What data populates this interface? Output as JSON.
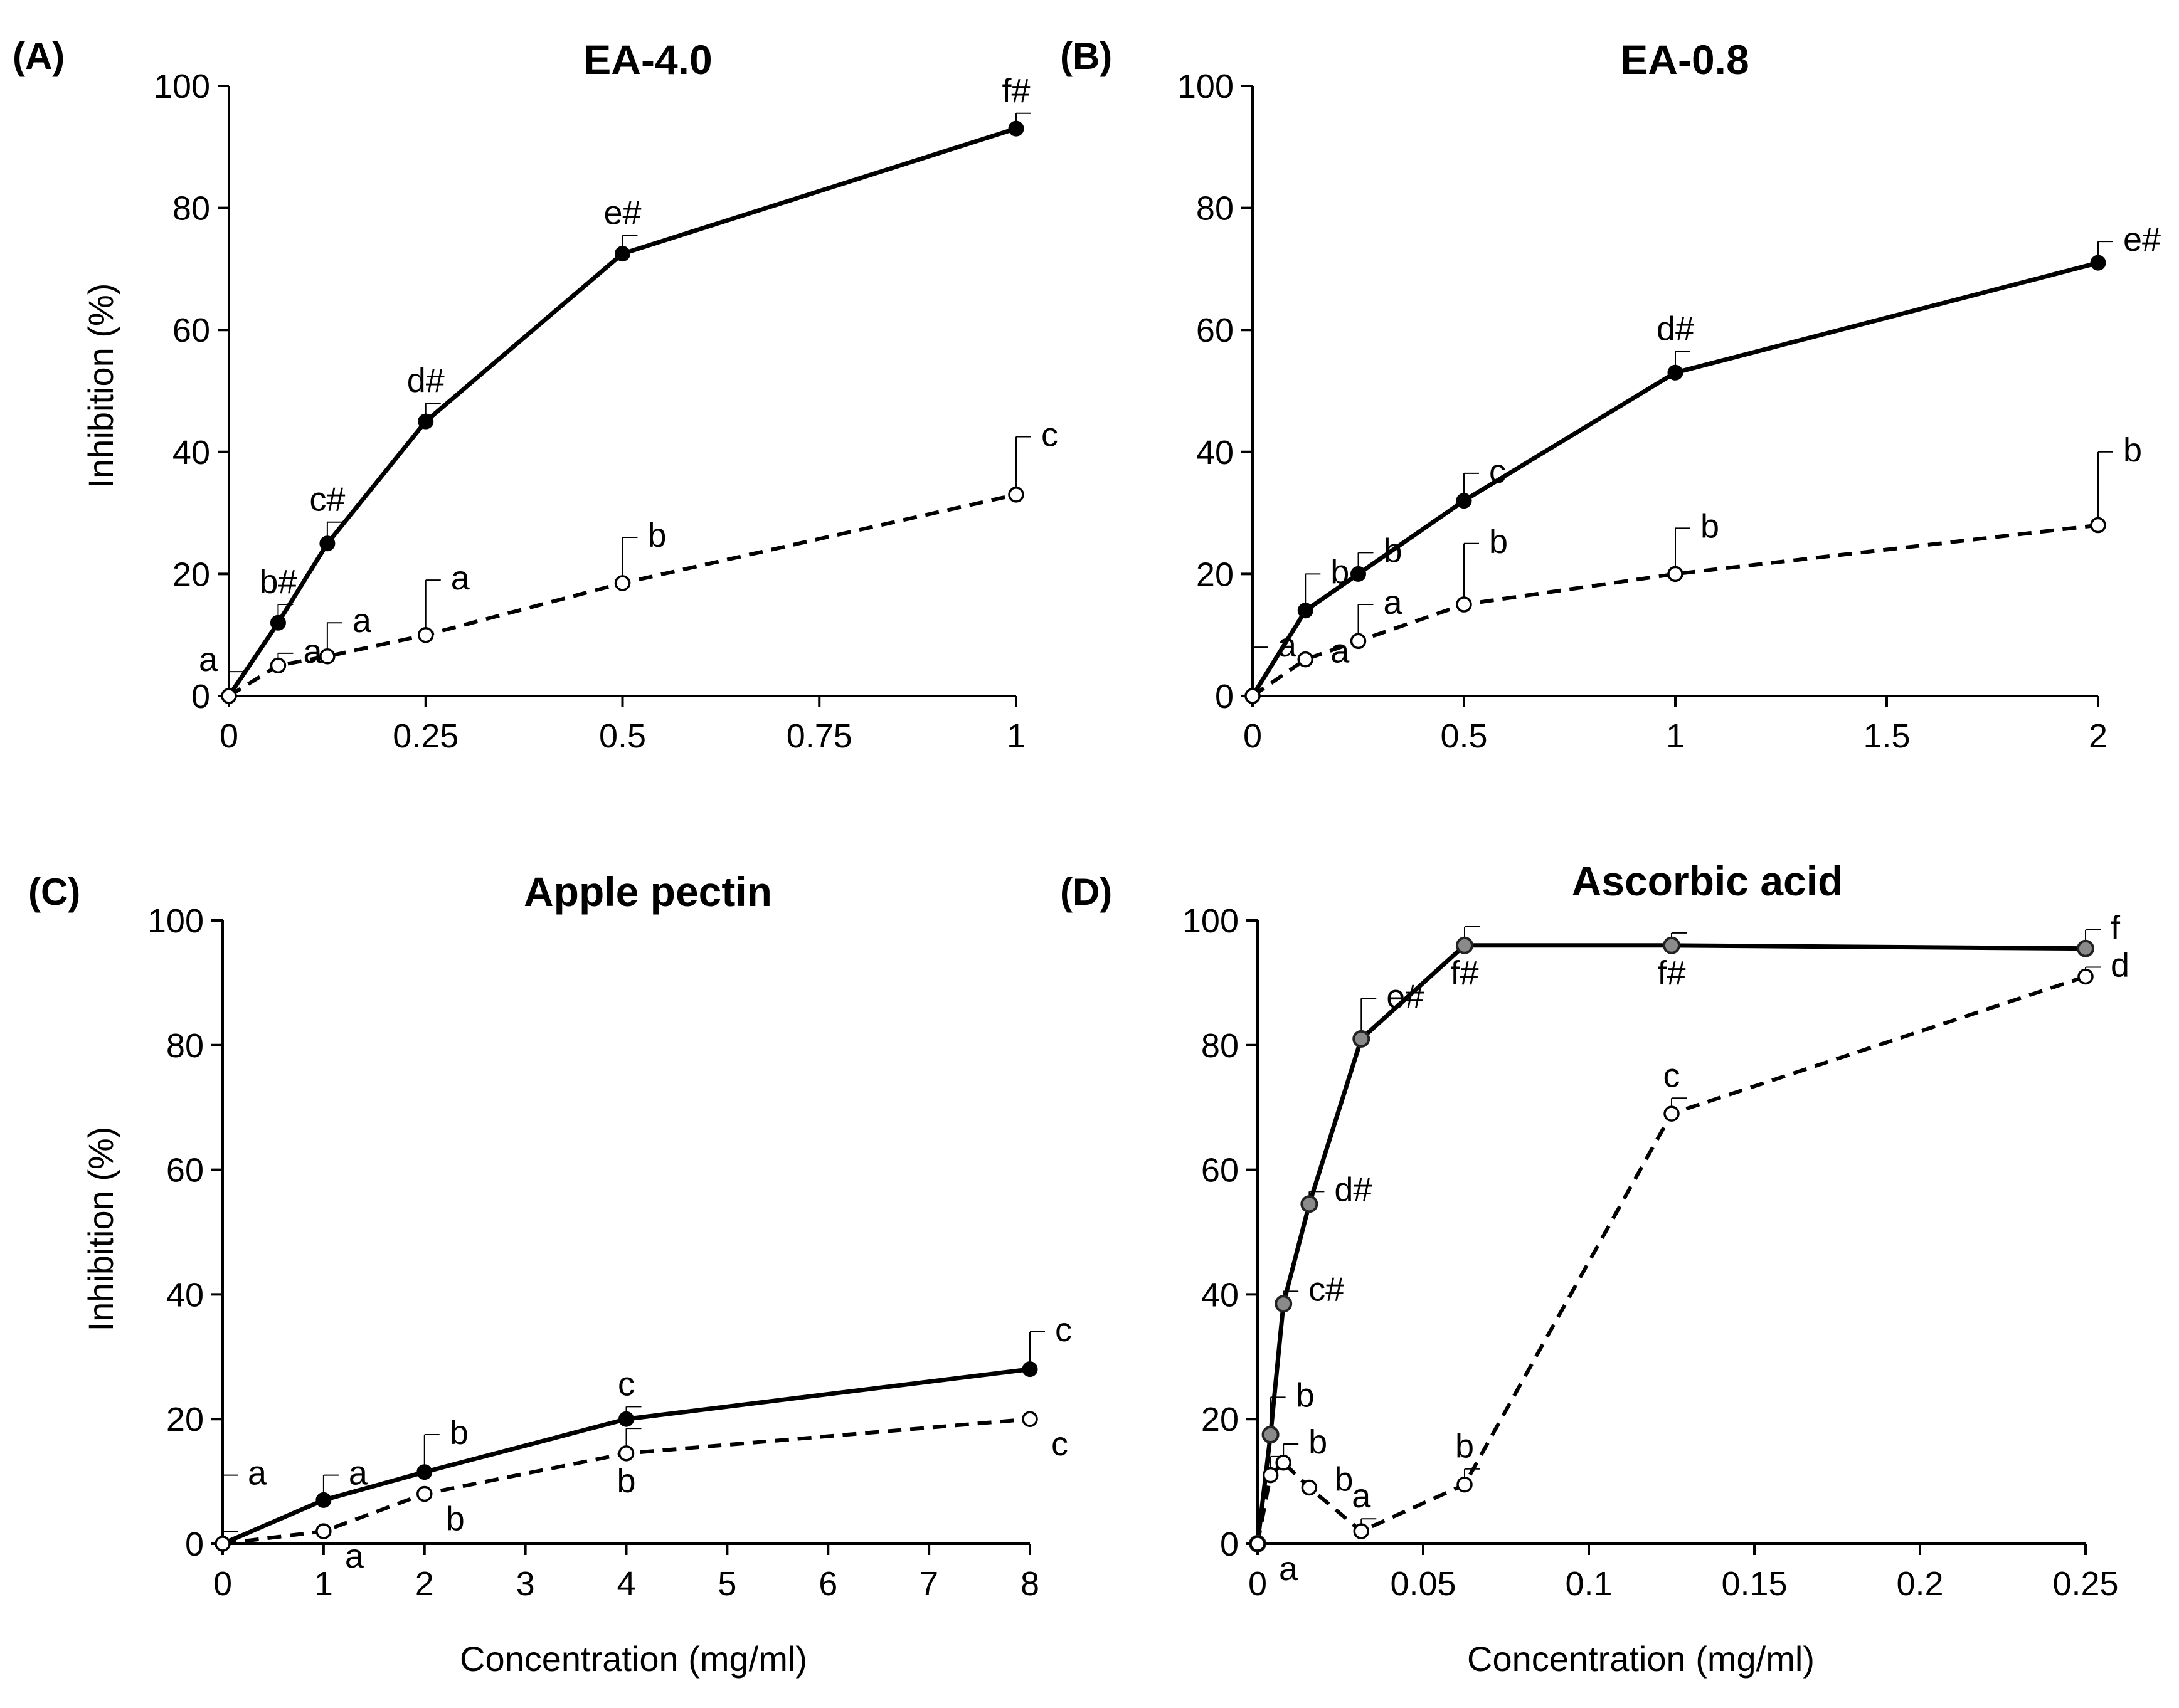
{
  "figure": {
    "panels": [
      "A",
      "B",
      "C",
      "D"
    ]
  },
  "chart_data": [
    {
      "id": "A",
      "type": "line",
      "panel_label": "(A)",
      "title": "EA-4.0",
      "xlabel": "",
      "ylabel": "Inhibition (%)",
      "xlim": [
        0,
        1
      ],
      "ylim": [
        0,
        100
      ],
      "xticks": [
        0,
        0.25,
        0.5,
        0.75,
        1
      ],
      "xtick_labels": [
        "0",
        "0.25",
        "0.5",
        "0.75",
        "1"
      ],
      "yticks": [
        0,
        20,
        40,
        60,
        80,
        100
      ],
      "ytick_labels": [
        "0",
        "20",
        "40",
        "60",
        "80",
        "100"
      ],
      "series": [
        {
          "name": "solid",
          "style": "solid",
          "marker": "filled",
          "x": [
            0,
            0.0625,
            0.125,
            0.25,
            0.5,
            1
          ],
          "y": [
            0,
            12,
            25,
            45,
            72.5,
            93
          ],
          "err": [
            0,
            3,
            3.5,
            3,
            3,
            2.5
          ],
          "labels": [
            "a",
            "b#",
            "c#",
            "d#",
            "e#",
            "f#"
          ],
          "label_pos": [
            "left",
            "above",
            "above",
            "above",
            "above",
            "above"
          ]
        },
        {
          "name": "dashed",
          "style": "dashed",
          "marker": "open",
          "x": [
            0,
            0.0625,
            0.125,
            0.25,
            0.5,
            1
          ],
          "y": [
            0,
            5,
            6.5,
            10,
            18.5,
            33
          ],
          "err": [
            4,
            2,
            5.5,
            9,
            7.5,
            9.5
          ],
          "labels": [
            "",
            "a",
            "a",
            "a",
            "b",
            "c"
          ],
          "label_pos": [
            "none",
            "right",
            "right",
            "right",
            "right",
            "right"
          ]
        }
      ]
    },
    {
      "id": "B",
      "type": "line",
      "panel_label": "(B)",
      "title": "EA-0.8",
      "xlabel": "",
      "ylabel": "",
      "xlim": [
        0,
        2
      ],
      "ylim": [
        0,
        100
      ],
      "xticks": [
        0,
        0.5,
        1,
        1.5,
        2
      ],
      "xtick_labels": [
        "0",
        "0.5",
        "1",
        "1.5",
        "2"
      ],
      "yticks": [
        0,
        20,
        40,
        60,
        80,
        100
      ],
      "ytick_labels": [
        "0",
        "20",
        "40",
        "60",
        "80",
        "100"
      ],
      "series": [
        {
          "name": "solid",
          "style": "solid",
          "marker": "filled",
          "x": [
            0,
            0.125,
            0.25,
            0.5,
            1,
            2
          ],
          "y": [
            0,
            14,
            20,
            32,
            53,
            71
          ],
          "err": [
            8,
            6,
            3.5,
            4.5,
            3.5,
            3.5
          ],
          "labels": [
            "a",
            "b",
            "b",
            "c",
            "d#",
            "e#"
          ],
          "label_pos": [
            "right",
            "right",
            "right",
            "right",
            "above",
            "right"
          ]
        },
        {
          "name": "dashed",
          "style": "dashed",
          "marker": "open",
          "x": [
            0,
            0.125,
            0.25,
            0.5,
            1,
            2
          ],
          "y": [
            0,
            6,
            9,
            15,
            20,
            28
          ],
          "err": [
            0,
            0,
            6,
            10,
            7.5,
            12
          ],
          "labels": [
            "",
            "a",
            "a",
            "b",
            "b",
            "b"
          ],
          "label_pos": [
            "none",
            "right",
            "right",
            "right",
            "right",
            "right"
          ]
        }
      ]
    },
    {
      "id": "C",
      "type": "line",
      "panel_label": "(C)",
      "title": "Apple pectin",
      "xlabel": "Concentration (mg/ml)",
      "ylabel": "Inhibition (%)",
      "xlim": [
        0,
        8
      ],
      "ylim": [
        0,
        100
      ],
      "xticks": [
        0,
        1,
        2,
        3,
        4,
        5,
        6,
        7,
        8
      ],
      "xtick_labels": [
        "0",
        "1",
        "2",
        "3",
        "4",
        "5",
        "6",
        "7",
        "8"
      ],
      "yticks": [
        0,
        20,
        40,
        60,
        80,
        100
      ],
      "ytick_labels": [
        "0",
        "20",
        "40",
        "60",
        "80",
        "100"
      ],
      "series": [
        {
          "name": "solid",
          "style": "solid",
          "marker": "filled",
          "x": [
            0,
            1,
            2,
            4,
            8
          ],
          "y": [
            0,
            7,
            11.5,
            20,
            28
          ],
          "err": [
            11,
            4,
            6,
            2,
            6
          ],
          "labels": [
            "a",
            "a",
            "b",
            "c",
            "c"
          ],
          "label_pos": [
            "right",
            "right",
            "right",
            "above",
            "right"
          ]
        },
        {
          "name": "dashed",
          "style": "dashed",
          "marker": "open",
          "x": [
            0,
            1,
            2,
            4,
            8
          ],
          "y": [
            0,
            2,
            8,
            14.5,
            20
          ],
          "err": [
            2,
            0,
            0,
            4,
            0
          ],
          "labels": [
            "",
            "a",
            "b",
            "b",
            "c"
          ],
          "label_pos": [
            "none",
            "below-right",
            "below-right",
            "below",
            "below-right"
          ]
        }
      ]
    },
    {
      "id": "D",
      "type": "line",
      "panel_label": "(D)",
      "title": "Ascorbic acid",
      "xlabel": "Concentration (mg/ml)",
      "ylabel": "",
      "xlim": [
        0,
        0.25
      ],
      "ylim": [
        0,
        100
      ],
      "xticks": [
        0,
        0.05,
        0.1,
        0.15,
        0.2,
        0.25
      ],
      "xtick_labels": [
        "0",
        "0.05",
        "0.1",
        "0.15",
        "0.2",
        "0.25"
      ],
      "yticks": [
        0,
        20,
        40,
        60,
        80,
        100
      ],
      "ytick_labels": [
        "0",
        "20",
        "40",
        "60",
        "80",
        "100"
      ],
      "series": [
        {
          "name": "solid",
          "style": "solid",
          "marker": "gray",
          "x": [
            0,
            0.0039,
            0.0078,
            0.0156,
            0.0313,
            0.0625,
            0.125,
            0.25
          ],
          "y": [
            0,
            17.5,
            38.5,
            54.5,
            81,
            96,
            96,
            95.5
          ],
          "err": [
            0,
            6,
            2,
            2,
            6.5,
            3,
            2,
            3
          ],
          "labels": [
            "a",
            "b",
            "c#",
            "d#",
            "e#",
            "f#",
            "f#",
            "f"
          ],
          "label_pos": [
            "below-right",
            "right",
            "right",
            "right",
            "right",
            "below",
            "below",
            "right"
          ]
        },
        {
          "name": "dashed",
          "style": "dashed",
          "marker": "open",
          "x": [
            0,
            0.0039,
            0.0078,
            0.0156,
            0.0313,
            0.0625,
            0.125,
            0.25
          ],
          "y": [
            0,
            11,
            13,
            9,
            2,
            9.5,
            69,
            91
          ],
          "err": [
            0,
            3,
            3,
            0,
            2,
            2.5,
            2.5,
            1.5
          ],
          "labels": [
            "",
            "",
            "b",
            "b",
            "a",
            "b",
            "c",
            "d"
          ],
          "label_pos": [
            "none",
            "none",
            "right",
            "right",
            "above",
            "above",
            "above",
            "right"
          ]
        }
      ]
    }
  ]
}
